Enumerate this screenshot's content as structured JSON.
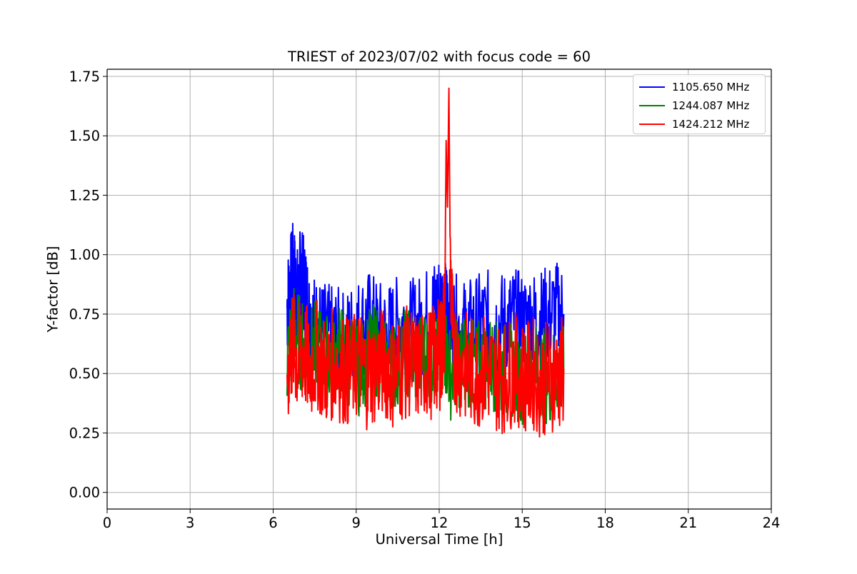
{
  "chart_data": {
    "type": "line",
    "title": "TRIEST of 2023/07/02 with focus code = 60",
    "xlabel": "Universal Time [h]",
    "ylabel": "Y-factor [dB]",
    "xlim": [
      0,
      24
    ],
    "ylim": [
      -0.07,
      1.78
    ],
    "xticks": [
      0,
      3,
      6,
      9,
      12,
      15,
      18,
      21,
      24
    ],
    "yticks": [
      "0.00",
      "0.25",
      "0.50",
      "0.75",
      "1.00",
      "1.25",
      "1.50",
      "1.75"
    ],
    "grid": true,
    "legend_position": "top-right",
    "series": [
      {
        "name": "1105.650 MHz",
        "color": "#0000ff",
        "x": [
          6.5,
          6.6,
          6.7,
          6.8,
          6.9,
          7.0,
          7.1,
          7.2,
          7.3,
          7.5,
          7.7,
          8.0,
          8.3,
          8.6,
          8.9,
          9.2,
          9.5,
          9.8,
          10.1,
          10.4,
          10.7,
          11.0,
          11.3,
          11.6,
          11.9,
          12.1,
          12.2,
          12.3,
          12.4,
          12.6,
          12.9,
          13.2,
          13.5,
          13.8,
          14.1,
          14.4,
          14.7,
          15.0,
          15.3,
          15.6,
          15.9,
          16.2,
          16.5
        ],
        "y": [
          0.78,
          0.85,
          0.92,
          0.88,
          0.8,
          0.93,
          0.86,
          0.82,
          0.75,
          0.7,
          0.68,
          0.66,
          0.65,
          0.63,
          0.68,
          0.7,
          0.72,
          0.68,
          0.66,
          0.69,
          0.71,
          0.68,
          0.7,
          0.74,
          0.79,
          0.8,
          0.76,
          0.75,
          0.72,
          0.7,
          0.68,
          0.69,
          0.71,
          0.72,
          0.7,
          0.72,
          0.73,
          0.71,
          0.73,
          0.72,
          0.74,
          0.76,
          0.75
        ]
      },
      {
        "name": "1244.087 MHz",
        "color": "#008000",
        "x": [
          6.5,
          6.7,
          6.9,
          7.1,
          7.3,
          7.6,
          7.9,
          8.2,
          8.5,
          8.8,
          9.1,
          9.4,
          9.7,
          10.0,
          10.3,
          10.6,
          10.9,
          11.2,
          11.5,
          11.8,
          12.0,
          12.2,
          12.4,
          12.7,
          13.0,
          13.3,
          13.6,
          13.9,
          14.2,
          14.5,
          14.8,
          15.1,
          15.4,
          15.7,
          16.0,
          16.3,
          16.5
        ],
        "y": [
          0.55,
          0.7,
          0.65,
          0.6,
          0.58,
          0.62,
          0.55,
          0.58,
          0.6,
          0.55,
          0.52,
          0.57,
          0.6,
          0.54,
          0.52,
          0.56,
          0.6,
          0.55,
          0.58,
          0.57,
          0.6,
          0.62,
          0.5,
          0.55,
          0.56,
          0.52,
          0.54,
          0.55,
          0.5,
          0.52,
          0.5,
          0.48,
          0.52,
          0.5,
          0.48,
          0.52,
          0.5
        ]
      },
      {
        "name": "1424.212 MHz",
        "color": "#ff0000",
        "x": [
          6.5,
          6.7,
          6.9,
          7.1,
          7.3,
          7.6,
          7.9,
          8.2,
          8.5,
          8.8,
          9.1,
          9.4,
          9.7,
          10.0,
          10.3,
          10.6,
          10.9,
          11.2,
          11.5,
          11.8,
          12.0,
          12.1,
          12.2,
          12.25,
          12.3,
          12.35,
          12.4,
          12.5,
          12.7,
          13.0,
          13.3,
          13.6,
          13.9,
          14.2,
          14.5,
          14.8,
          15.1,
          15.4,
          15.7,
          16.0,
          16.3,
          16.5
        ],
        "y": [
          0.5,
          0.62,
          0.55,
          0.6,
          0.52,
          0.58,
          0.5,
          0.55,
          0.52,
          0.5,
          0.55,
          0.5,
          0.52,
          0.55,
          0.5,
          0.53,
          0.55,
          0.52,
          0.54,
          0.55,
          0.58,
          0.6,
          0.75,
          1.48,
          1.2,
          1.7,
          0.95,
          0.62,
          0.55,
          0.52,
          0.5,
          0.52,
          0.5,
          0.48,
          0.5,
          0.52,
          0.48,
          0.5,
          0.46,
          0.5,
          0.48,
          0.52
        ]
      }
    ]
  }
}
